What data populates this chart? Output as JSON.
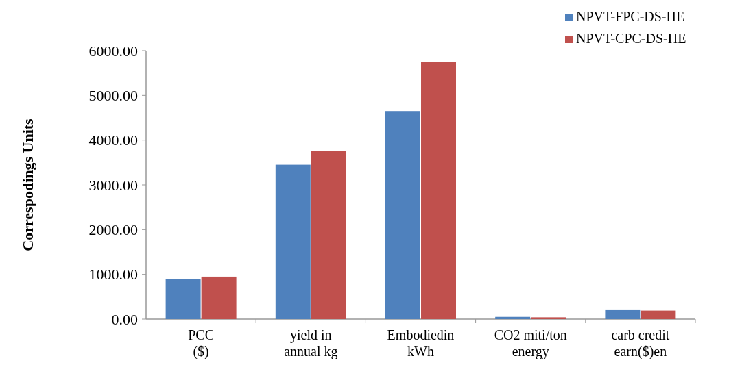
{
  "chart_data": {
    "type": "bar",
    "ylabel": "Correspodings Units",
    "categories": [
      "PCC ($)",
      "yield in annual kg",
      "Embodiedin kWh",
      "CO2 miti/ton energy",
      "carb credit earn($)en"
    ],
    "series": [
      {
        "name": "NPVT-FPC-DS-HE",
        "color": "#4f81bd",
        "values": [
          900,
          3450,
          4650,
          50,
          200
        ]
      },
      {
        "name": "NPVT-CPC-DS-HE",
        "color": "#c0504d",
        "values": [
          950,
          3750,
          5750,
          40,
          190
        ]
      }
    ],
    "ylim": [
      0,
      6000
    ],
    "yticks": [
      {
        "value": 0,
        "label": "0.00"
      },
      {
        "value": 1000,
        "label": "1000.00"
      },
      {
        "value": 2000,
        "label": "2000.00"
      },
      {
        "value": 3000,
        "label": "3000.00"
      },
      {
        "value": 4000,
        "label": "4000.00"
      },
      {
        "value": 5000,
        "label": "5000.00"
      },
      {
        "value": 6000,
        "label": "6000.00"
      }
    ],
    "grid": false,
    "legend": "top right"
  }
}
